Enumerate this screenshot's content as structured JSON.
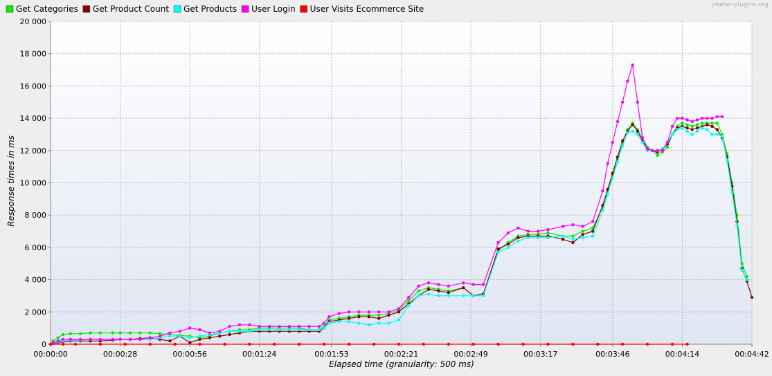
{
  "watermark": "jmeter-plugins.org",
  "chart_data": {
    "type": "line",
    "title": "",
    "xlabel": "Elapsed time (granularity: 500 ms)",
    "ylabel": "Response times in ms",
    "ylim": [
      0,
      20000
    ],
    "yticks": [
      0,
      2000,
      4000,
      6000,
      8000,
      10000,
      12000,
      14000,
      16000,
      18000,
      20000
    ],
    "ytick_labels": [
      "0",
      "2 000",
      "4 000",
      "6 000",
      "8 000",
      "10 000",
      "12 000",
      "14 000",
      "16 000",
      "18 000",
      "20 000"
    ],
    "xlim": [
      0,
      282
    ],
    "xticks": [
      0,
      28,
      56,
      84,
      113,
      141,
      169,
      197,
      226,
      254,
      282
    ],
    "xtick_labels": [
      "00:00:00",
      "00:00:28",
      "00:00:56",
      "00:01:24",
      "00:01:53",
      "00:02:21",
      "00:02:49",
      "00:03:17",
      "00:03:46",
      "00:04:14",
      "00:04:42"
    ],
    "grid": true,
    "legend_position": "top",
    "series": [
      {
        "name": "Get Categories",
        "color": "#00ee00",
        "x": [
          1,
          3,
          5,
          8,
          12,
          16,
          20,
          25,
          28,
          32,
          36,
          40,
          44,
          48,
          52,
          56,
          60,
          64,
          68,
          72,
          76,
          80,
          84,
          88,
          92,
          96,
          100,
          104,
          108,
          110,
          112,
          116,
          120,
          124,
          128,
          132,
          136,
          140,
          144,
          148,
          152,
          156,
          160,
          166,
          170,
          174,
          180,
          184,
          188,
          192,
          196,
          200,
          206,
          210,
          214,
          218,
          222,
          224,
          226,
          228,
          230,
          232,
          234,
          236,
          238,
          240,
          242,
          244,
          246,
          248,
          250,
          252,
          254,
          256,
          258,
          260,
          262,
          264,
          266,
          268,
          270,
          272,
          274,
          276,
          278,
          280
        ],
        "y": [
          200,
          400,
          600,
          650,
          650,
          700,
          700,
          700,
          700,
          700,
          700,
          700,
          650,
          600,
          550,
          500,
          400,
          500,
          700,
          800,
          900,
          900,
          1000,
          1000,
          1000,
          1000,
          1000,
          900,
          900,
          1100,
          1500,
          1600,
          1700,
          1800,
          1800,
          1800,
          1900,
          2100,
          2700,
          3300,
          3500,
          3400,
          3300,
          3500,
          3000,
          3100,
          5800,
          6300,
          6700,
          6800,
          6800,
          6900,
          6700,
          6700,
          7000,
          7200,
          8500,
          9500,
          10500,
          11500,
          12500,
          13300,
          13700,
          13300,
          12800,
          12200,
          12000,
          11700,
          11900,
          12200,
          13000,
          13500,
          13700,
          13600,
          13500,
          13600,
          13700,
          13700,
          13700,
          13700,
          13000,
          11800,
          10000,
          8000,
          5000,
          4200
        ]
      },
      {
        "name": "Get Product Count",
        "color": "#880000",
        "x": [
          1,
          3,
          5,
          8,
          12,
          16,
          20,
          25,
          28,
          32,
          36,
          40,
          44,
          48,
          52,
          56,
          60,
          64,
          68,
          72,
          76,
          80,
          84,
          88,
          92,
          96,
          100,
          104,
          108,
          110,
          112,
          116,
          120,
          124,
          128,
          132,
          136,
          140,
          144,
          148,
          152,
          156,
          160,
          166,
          170,
          174,
          180,
          184,
          188,
          192,
          196,
          200,
          206,
          210,
          214,
          218,
          222,
          224,
          226,
          228,
          230,
          232,
          234,
          236,
          238,
          240,
          242,
          244,
          246,
          248,
          250,
          252,
          254,
          256,
          258,
          260,
          262,
          264,
          266,
          268,
          270,
          272,
          274,
          276,
          278,
          280,
          282
        ],
        "y": [
          50,
          100,
          150,
          200,
          200,
          200,
          200,
          250,
          300,
          300,
          350,
          400,
          300,
          200,
          500,
          100,
          300,
          400,
          500,
          600,
          700,
          800,
          800,
          800,
          800,
          800,
          800,
          800,
          800,
          1000,
          1400,
          1500,
          1600,
          1700,
          1700,
          1600,
          1800,
          2000,
          2500,
          3000,
          3400,
          3300,
          3200,
          3500,
          3000,
          3100,
          5900,
          6200,
          6600,
          6700,
          6700,
          6700,
          6500,
          6300,
          6800,
          7000,
          8600,
          9600,
          10600,
          11600,
          12600,
          13200,
          13600,
          13200,
          12600,
          12100,
          12000,
          11900,
          12100,
          12400,
          13000,
          13400,
          13500,
          13400,
          13300,
          13400,
          13500,
          13600,
          13500,
          13300,
          12800,
          11600,
          9800,
          7600,
          4700,
          3900,
          2900
        ]
      },
      {
        "name": "Get Products",
        "color": "#00ffff",
        "x": [
          1,
          3,
          5,
          8,
          12,
          16,
          20,
          25,
          28,
          32,
          36,
          40,
          44,
          48,
          52,
          56,
          60,
          64,
          68,
          72,
          76,
          80,
          84,
          88,
          92,
          96,
          100,
          104,
          108,
          110,
          112,
          116,
          120,
          124,
          128,
          132,
          136,
          140,
          144,
          148,
          152,
          156,
          160,
          166,
          170,
          174,
          180,
          184,
          188,
          192,
          196,
          200,
          206,
          210,
          214,
          218,
          222,
          224,
          226,
          228,
          230,
          232,
          234,
          236,
          238,
          240,
          242,
          244,
          246,
          248,
          250,
          252,
          254,
          256,
          258,
          260,
          262,
          264,
          266,
          268,
          270,
          272,
          274,
          276,
          278,
          280
        ],
        "y": [
          100,
          150,
          200,
          250,
          250,
          300,
          300,
          300,
          300,
          300,
          300,
          300,
          400,
          500,
          500,
          400,
          500,
          600,
          700,
          800,
          800,
          800,
          900,
          900,
          900,
          900,
          900,
          900,
          900,
          1000,
          1300,
          1400,
          1400,
          1300,
          1200,
          1300,
          1300,
          1500,
          2400,
          3000,
          3100,
          3000,
          3000,
          3000,
          3000,
          3000,
          5700,
          6000,
          6400,
          6600,
          6600,
          6600,
          6700,
          6500,
          6600,
          6700,
          8300,
          9300,
          10300,
          11300,
          12300,
          13100,
          13200,
          13000,
          12500,
          12000,
          12000,
          12000,
          12100,
          12500,
          13000,
          13300,
          13400,
          13200,
          13000,
          13200,
          13400,
          13300,
          13000,
          13000,
          12900,
          11400,
          9400,
          7400,
          4600,
          4000
        ]
      },
      {
        "name": "User Login",
        "color": "#ff00ff",
        "x": [
          1,
          3,
          5,
          8,
          12,
          16,
          20,
          25,
          28,
          32,
          36,
          40,
          44,
          48,
          52,
          56,
          60,
          64,
          68,
          72,
          76,
          80,
          84,
          88,
          92,
          96,
          100,
          104,
          108,
          110,
          112,
          116,
          120,
          124,
          128,
          132,
          136,
          140,
          144,
          148,
          152,
          156,
          160,
          166,
          170,
          174,
          180,
          184,
          188,
          192,
          196,
          200,
          206,
          210,
          214,
          218,
          222,
          224,
          226,
          228,
          230,
          232,
          234,
          236,
          238,
          240,
          242,
          244,
          246,
          248,
          250,
          252,
          254,
          256,
          258,
          260,
          262,
          264,
          266,
          268,
          270
        ],
        "y": [
          100,
          200,
          300,
          300,
          300,
          300,
          300,
          300,
          300,
          300,
          300,
          400,
          500,
          700,
          800,
          1000,
          900,
          700,
          800,
          1100,
          1200,
          1200,
          1100,
          1100,
          1100,
          1100,
          1100,
          1100,
          1100,
          1300,
          1700,
          1900,
          2000,
          2000,
          2000,
          2000,
          2000,
          2200,
          2900,
          3600,
          3800,
          3700,
          3600,
          3800,
          3700,
          3700,
          6300,
          6900,
          7200,
          7000,
          7000,
          7100,
          7300,
          7400,
          7300,
          7600,
          9500,
          11200,
          12500,
          13800,
          15000,
          16300,
          17300,
          15000,
          12800,
          12100,
          12000,
          12000,
          12000,
          12500,
          13500,
          14000,
          14000,
          13900,
          13800,
          13900,
          14000,
          14000,
          14000,
          14100,
          14100
        ]
      },
      {
        "name": "User Visits Ecommerce Site",
        "color": "#ff0000",
        "x": [
          0,
          5,
          10,
          20,
          30,
          40,
          50,
          60,
          70,
          80,
          90,
          100,
          110,
          120,
          130,
          140,
          150,
          160,
          170,
          180,
          190,
          200,
          210,
          220,
          230,
          240,
          250,
          256
        ],
        "y": [
          0,
          0,
          0,
          0,
          0,
          0,
          0,
          0,
          0,
          0,
          0,
          0,
          0,
          0,
          0,
          0,
          0,
          0,
          0,
          0,
          0,
          0,
          0,
          0,
          0,
          0,
          0,
          0
        ]
      }
    ]
  }
}
